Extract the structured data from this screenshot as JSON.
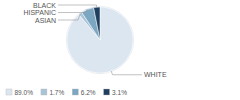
{
  "chart_data": {
    "type": "pie",
    "categories": [
      "WHITE",
      "ASIAN",
      "HISPANIC",
      "BLACK"
    ],
    "values": [
      89.0,
      1.7,
      6.2,
      3.1
    ],
    "value_labels": [
      "89.0%",
      "1.7%",
      "6.2%",
      "3.1%"
    ],
    "colors": [
      "#dce6f1",
      "#a8c4d8",
      "#7ba7c2",
      "#1f3f5f"
    ],
    "legend": "lower left"
  }
}
